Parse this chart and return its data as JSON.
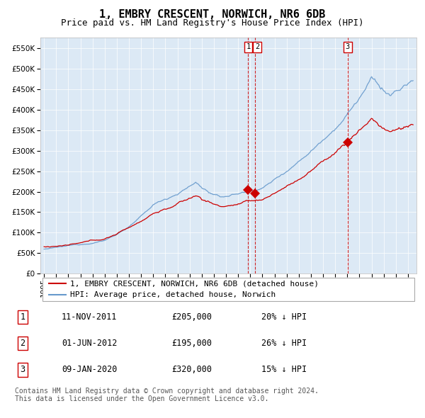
{
  "title": "1, EMBRY CRESCENT, NORWICH, NR6 6DB",
  "subtitle": "Price paid vs. HM Land Registry's House Price Index (HPI)",
  "legend_label_red": "1, EMBRY CRESCENT, NORWICH, NR6 6DB (detached house)",
  "legend_label_blue": "HPI: Average price, detached house, Norwich",
  "footer1": "Contains HM Land Registry data © Crown copyright and database right 2024.",
  "footer2": "This data is licensed under the Open Government Licence v3.0.",
  "transactions": [
    {
      "id": 1,
      "date": "11-NOV-2011",
      "price": 205000,
      "pct": "20%",
      "dir": "↓"
    },
    {
      "id": 2,
      "date": "01-JUN-2012",
      "price": 195000,
      "pct": "26%",
      "dir": "↓"
    },
    {
      "id": 3,
      "date": "09-JAN-2020",
      "price": 320000,
      "pct": "15%",
      "dir": "↓"
    }
  ],
  "transaction_dates_num": [
    2011.833,
    2012.417,
    2020.033
  ],
  "transaction_prices": [
    205000,
    195000,
    320000
  ],
  "ylim": [
    0,
    575000
  ],
  "xlim_start": 1994.7,
  "xlim_end": 2025.7,
  "background_color": "#ffffff",
  "plot_bg_color": "#dce9f5",
  "grid_color": "#ffffff",
  "red_line_color": "#cc0000",
  "blue_line_color": "#6699cc",
  "vline_color": "#cc0000",
  "marker_color": "#cc0000",
  "title_fontsize": 11,
  "subtitle_fontsize": 9,
  "tick_fontsize": 7.5,
  "legend_fontsize": 8,
  "footer_fontsize": 7
}
